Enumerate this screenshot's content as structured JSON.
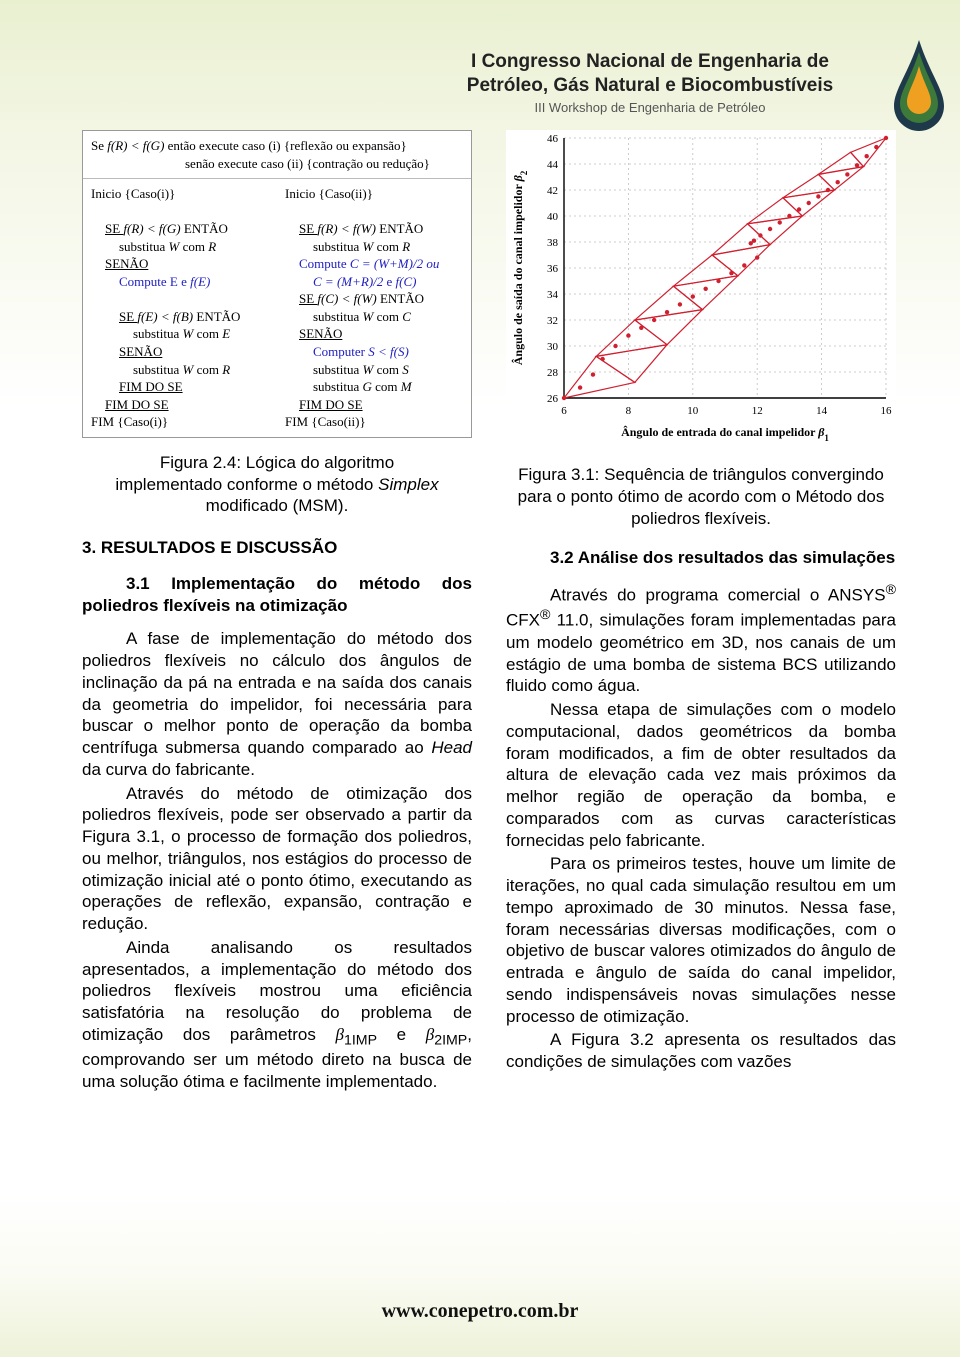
{
  "header": {
    "line1": "I Congresso Nacional de Engenharia de",
    "line2": "Petróleo, Gás Natural e Biocombustíveis",
    "sub": "III Workshop de Engenharia de Petróleo"
  },
  "droplet": {
    "outer_fill": "#1e3a4a",
    "mid_fill": "#3d7a3a",
    "inner_fill": "#f0a020"
  },
  "footer": "www.conepetro.com.br",
  "fig24": {
    "caption_a": "Figura 2.4: Lógica do algoritmo",
    "caption_b": "implementado conforme o método ",
    "caption_c": "Simplex",
    "caption_d": " modificado (MSM).",
    "top_a": "Se ",
    "top_b": "f(R) < f(G)",
    "top_c": " então execute caso (i)  {reflexão ou expansão}",
    "top_d": "senão  execute caso (ii) {contração ou redução}",
    "left": {
      "l0": "Inicio {Caso(i)}",
      "l1a": "SE ",
      "l1b": "f(R) < f(G)",
      "l1c": " ENTÃO",
      "l2": "substitua ",
      "l2b": "W",
      "l2c": " com ",
      "l2d": "R",
      "l3": "SENÃO",
      "l4": "Compute E e ",
      "l4b": "f(E)",
      "l5a": "SE ",
      "l5b": "f(E) < f(B)",
      "l5c": " ENTÃO",
      "l6": "substitua ",
      "l6b": "W",
      "l6c": " com ",
      "l6d": "E",
      "l7": "SENÃO",
      "l8": "substitua ",
      "l8b": "W",
      "l8c": " com ",
      "l8d": "R",
      "l9": "FIM DO SE",
      "l10": "FIM DO SE",
      "l11": "FIM {Caso(i)}"
    },
    "right": {
      "l0": "Inicio {Caso(ii)}",
      "l1a": "SE ",
      "l1b": "f(R) < f(W)",
      "l1c": " ENTÃO",
      "l2": "substitua ",
      "l2b": "W",
      "l2c": " com ",
      "l2d": "R",
      "l3a": "Compute ",
      "l3b": "C = (W+M)/2 ou",
      "l3c": "C = (M+R)/2",
      "l3d": " e ",
      "l3e": "f(C)",
      "l4a": "SE ",
      "l4b": "f(C) < f(W)",
      "l4c": " ENTÃO",
      "l5": "substitua ",
      "l5b": "W",
      "l5c": " com ",
      "l5d": "C",
      "l6": "SENÃO",
      "l7": "Computer ",
      "l7b": "S < f(S)",
      "l8": "substitua ",
      "l8b": "W",
      "l8c": " com ",
      "l8d": "S",
      "l9": "substitua ",
      "l9b": "G",
      "l9c": " com ",
      "l9d": "M",
      "l10": "FIM DO SE",
      "l11": "FIM {Caso(ii)}"
    }
  },
  "section3": {
    "title": "3. RESULTADOS E DISCUSSÃO",
    "s31_title": "3.1 Implementação do método dos poliedros flexíveis na otimização",
    "p1": "A fase de implementação do método dos poliedros flexíveis no cálculo dos ângulos de inclinação da pá na entrada e na saída dos canais da geometria do impelidor, foi necessária para buscar o melhor ponto de operação da bomba centrífuga submersa quando comparado ao ",
    "p1_it": "Head",
    "p1_end": " da curva do fabricante.",
    "p2": "Através do método de otimização dos poliedros flexíveis, pode ser observado a partir da Figura 3.1, o processo de formação dos poliedros, ou melhor, triângulos, nos estágios do processo de otimização inicial até o ponto ótimo, executando as operações de reflexão, expansão, contração e redução.",
    "p3a": "Ainda analisando os resultados apresentados, a implementação do método dos poliedros flexíveis mostrou uma eficiência satisfatória na resolução do problema de otimização dos parâmetros ",
    "p3b": "β",
    "p3b_sub": "1IMP",
    "p3c": " e ",
    "p3d": "β",
    "p3d_sub": "2IMP",
    "p3e": ", comprovando ser um método direto na busca de uma solução ótima e facilmente implementado."
  },
  "fig31": {
    "caption_a": "Figura 3.1: Sequência de triângulos convergindo para o ponto ótimo de acordo com o Método dos poliedros flexíveis.",
    "xlabel_a": "Ângulo de entrada do canal impelidor ",
    "xlabel_b": "β",
    "xlabel_sub": "1",
    "ylabel_a": "Ângulo de saída do canal impelidor ",
    "ylabel_b": "β",
    "ylabel_sub": "2",
    "xlim": [
      6,
      16
    ],
    "ylim": [
      26,
      46
    ],
    "xtick_step": 2,
    "ytick_step": 2,
    "grid_color": "#bfbfbf",
    "axis_color": "#000000",
    "background_color": "#ffffff",
    "line_color": "#d02030",
    "line_width": 1.2,
    "marker_color": "#d02030",
    "marker_size": 2.2,
    "tick_fontsize": 11,
    "label_fontsize": 12,
    "points": [
      [
        6.0,
        26.0
      ],
      [
        16.0,
        46.0
      ],
      [
        6.5,
        26.8
      ],
      [
        15.7,
        45.3
      ],
      [
        6.9,
        27.8
      ],
      [
        15.4,
        44.6
      ],
      [
        7.2,
        29.0
      ],
      [
        15.1,
        43.9
      ],
      [
        7.6,
        30.0
      ],
      [
        14.8,
        43.2
      ],
      [
        8.0,
        30.8
      ],
      [
        14.5,
        42.6
      ],
      [
        8.4,
        31.4
      ],
      [
        14.2,
        42.0
      ],
      [
        8.8,
        32.0
      ],
      [
        13.9,
        41.5
      ],
      [
        9.2,
        32.6
      ],
      [
        13.6,
        41.0
      ],
      [
        9.6,
        33.2
      ],
      [
        13.3,
        40.5
      ],
      [
        10.0,
        33.8
      ],
      [
        13.0,
        40.0
      ],
      [
        10.4,
        34.4
      ],
      [
        12.7,
        39.5
      ],
      [
        10.8,
        35.0
      ],
      [
        12.4,
        39.0
      ],
      [
        11.2,
        35.6
      ],
      [
        12.1,
        38.5
      ],
      [
        11.6,
        36.2
      ],
      [
        11.9,
        38.1
      ],
      [
        12.0,
        36.8
      ],
      [
        11.8,
        37.9
      ]
    ],
    "triangles": [
      [
        [
          6.0,
          26.0
        ],
        [
          8.2,
          27.2
        ],
        [
          7.0,
          29.2
        ]
      ],
      [
        [
          8.2,
          27.2
        ],
        [
          7.0,
          29.2
        ],
        [
          9.2,
          30.1
        ]
      ],
      [
        [
          7.0,
          29.2
        ],
        [
          9.2,
          30.1
        ],
        [
          8.2,
          32.0
        ]
      ],
      [
        [
          9.2,
          30.1
        ],
        [
          8.2,
          32.0
        ],
        [
          10.3,
          32.8
        ]
      ],
      [
        [
          8.2,
          32.0
        ],
        [
          10.3,
          32.8
        ],
        [
          9.4,
          34.6
        ]
      ],
      [
        [
          10.3,
          32.8
        ],
        [
          9.4,
          34.6
        ],
        [
          11.4,
          35.4
        ]
      ],
      [
        [
          9.4,
          34.6
        ],
        [
          11.4,
          35.4
        ],
        [
          10.6,
          37.0
        ]
      ],
      [
        [
          11.4,
          35.4
        ],
        [
          10.6,
          37.0
        ],
        [
          12.4,
          37.8
        ]
      ],
      [
        [
          10.6,
          37.0
        ],
        [
          12.4,
          37.8
        ],
        [
          11.7,
          39.4
        ]
      ],
      [
        [
          12.4,
          37.8
        ],
        [
          11.7,
          39.4
        ],
        [
          13.4,
          40.0
        ]
      ],
      [
        [
          11.7,
          39.4
        ],
        [
          13.4,
          40.0
        ],
        [
          12.8,
          41.4
        ]
      ],
      [
        [
          13.4,
          40.0
        ],
        [
          12.8,
          41.4
        ],
        [
          14.4,
          42.0
        ]
      ],
      [
        [
          12.8,
          41.4
        ],
        [
          14.4,
          42.0
        ],
        [
          13.9,
          43.2
        ]
      ],
      [
        [
          14.4,
          42.0
        ],
        [
          13.9,
          43.2
        ],
        [
          15.3,
          43.8
        ]
      ],
      [
        [
          13.9,
          43.2
        ],
        [
          15.3,
          43.8
        ],
        [
          14.9,
          44.9
        ]
      ],
      [
        [
          15.3,
          43.8
        ],
        [
          14.9,
          44.9
        ],
        [
          16.0,
          46.0
        ]
      ]
    ]
  },
  "section32": {
    "title": "3.2 Análise dos resultados das simulações",
    "p1a": "Através do programa comercial o ANSYS",
    "p1b": " CFX",
    "p1c": " 11.0, simulações foram implementadas para um modelo geométrico em 3D, nos canais de um estágio de uma bomba de sistema BCS utilizando fluido como água.",
    "p2": "Nessa etapa de simulações com o modelo computacional, dados geométricos da bomba foram modificados, a fim de obter resultados da altura de elevação cada vez mais próximos da melhor região de operação da bomba, e comparados com as curvas características fornecidas pelo fabricante.",
    "p3": "Para os primeiros testes, houve um limite de iterações, no qual cada simulação resultou em um tempo aproximado de 30 minutos. Nessa fase, foram necessárias diversas modificações, com o objetivo de buscar valores otimizados do ângulo de entrada e ângulo de saída do canal impelidor, sendo indispensáveis novas simulações nesse processo de otimização.",
    "p4": "A Figura 3.2 apresenta os resultados das condições de simulações com vazões"
  }
}
